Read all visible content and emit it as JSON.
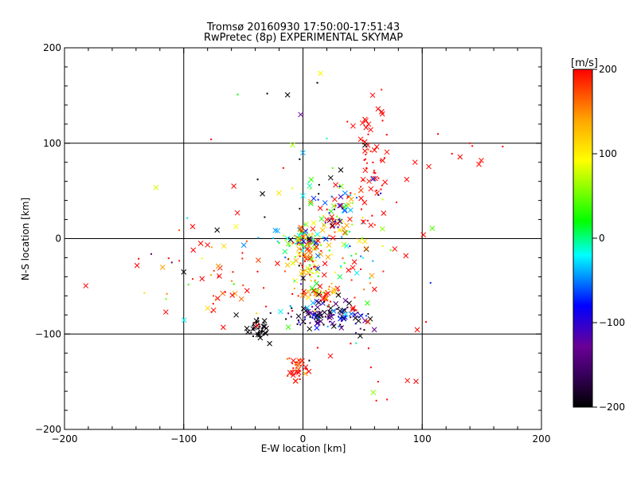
{
  "chart_data": {
    "type": "scatter",
    "title": "Tromsø 20160930 17:50:00-17:51:43",
    "subtitle": "RwPretec (8p) EXPERIMENTAL SKYMAP",
    "xlabel": "E-W location [km]",
    "ylabel": "N-S location [km]",
    "xlim": [
      -200,
      200
    ],
    "ylim": [
      -200,
      200
    ],
    "xticks": [
      "-200",
      "-100",
      "0",
      "100",
      "200"
    ],
    "yticks": [
      "-200",
      "-100",
      "0",
      "100",
      "200"
    ],
    "grid_values": [
      -100,
      0,
      100
    ],
    "grid": true,
    "colorbar": {
      "label": "[m/s]",
      "range": [
        -200,
        200
      ],
      "ticks": [
        "200",
        "100",
        "0",
        "-100",
        "-200"
      ],
      "colors": [
        "#000000",
        "#6a0096",
        "#0000ff",
        "#00ffff",
        "#00ff00",
        "#ffff00",
        "#ffa500",
        "#ff0000"
      ]
    },
    "series": [
      {
        "name": "clusters",
        "clusters": [
          {
            "cx": 2,
            "cy": -1,
            "sx": 8,
            "sy": 6,
            "n": 90,
            "v": 60,
            "vs": 110
          },
          {
            "cx": 3,
            "cy": -25,
            "sx": 7,
            "sy": 12,
            "n": 60,
            "v": 150,
            "vs": 70
          },
          {
            "cx": 18,
            "cy": -58,
            "sx": 10,
            "sy": 6,
            "n": 40,
            "v": 170,
            "vs": 50
          },
          {
            "cx": 18,
            "cy": -82,
            "sx": 18,
            "sy": 7,
            "n": 130,
            "v": -150,
            "vs": 60
          },
          {
            "cx": -38,
            "cy": -96,
            "sx": 4,
            "sy": 6,
            "n": 40,
            "v": -200,
            "vs": 5
          },
          {
            "cx": -5,
            "cy": -137,
            "sx": 4,
            "sy": 7,
            "n": 40,
            "v": 190,
            "vs": 20
          },
          {
            "cx": 30,
            "cy": 15,
            "sx": 10,
            "sy": 12,
            "n": 55,
            "v": 20,
            "vs": 150
          },
          {
            "cx": 55,
            "cy": 75,
            "sx": 10,
            "sy": 30,
            "n": 60,
            "v": 200,
            "vs": 10
          },
          {
            "cx": 25,
            "cy": 45,
            "sx": 15,
            "sy": 15,
            "n": 30,
            "v": 0,
            "vs": 150
          },
          {
            "cx": -60,
            "cy": -40,
            "sx": 20,
            "sy": 15,
            "n": 25,
            "v": 190,
            "vs": 30
          },
          {
            "cx": 45,
            "cy": -20,
            "sx": 15,
            "sy": 20,
            "n": 30,
            "v": 100,
            "vs": 150
          },
          {
            "cx": 0,
            "cy": -50,
            "sx": 60,
            "sy": 45,
            "n": 80,
            "v": 100,
            "vs": 200
          },
          {
            "cx": 120,
            "cy": 85,
            "sx": 25,
            "sy": 12,
            "n": 8,
            "v": 200,
            "vs": 5
          },
          {
            "cx": -90,
            "cy": -25,
            "sx": 30,
            "sy": 25,
            "n": 12,
            "v": 120,
            "vs": 100
          },
          {
            "cx": 15,
            "cy": 90,
            "sx": 30,
            "sy": 40,
            "n": 15,
            "v": 0,
            "vs": 200
          },
          {
            "cx": 90,
            "cy": -150,
            "sx": 4,
            "sy": 4,
            "n": 2,
            "v": 200,
            "vs": 5
          },
          {
            "cx": 65,
            "cy": -170,
            "sx": 3,
            "sy": 3,
            "n": 2,
            "v": 200,
            "vs": 5
          }
        ]
      }
    ],
    "points": [
      {
        "x": -30,
        "y": 152,
        "v": -200,
        "m": "."
      },
      {
        "x": -77,
        "y": 104,
        "v": 200,
        "m": "."
      },
      {
        "x": 63,
        "y": 136,
        "v": 200,
        "m": "x"
      },
      {
        "x": 66,
        "y": 133,
        "v": 200,
        "m": "x"
      },
      {
        "x": 52,
        "y": 125,
        "v": 200,
        "m": "x"
      },
      {
        "x": 55,
        "y": 120,
        "v": 200,
        "m": "x"
      },
      {
        "x": 42,
        "y": 118,
        "v": 200,
        "m": "x"
      },
      {
        "x": 140,
        "y": 100,
        "v": 200,
        "m": "."
      },
      {
        "x": 125,
        "y": 89,
        "v": 200,
        "m": "."
      },
      {
        "x": 101,
        "y": 4,
        "v": 200,
        "m": "x"
      },
      {
        "x": 94,
        "y": 80,
        "v": 200,
        "m": "x"
      },
      {
        "x": 87,
        "y": 62,
        "v": 200,
        "m": "x"
      },
      {
        "x": 0,
        "y": 90,
        "v": -40,
        "m": "x"
      },
      {
        "x": -38,
        "y": 62,
        "v": -200,
        "m": "."
      },
      {
        "x": -34,
        "y": 47,
        "v": -200,
        "m": "x"
      },
      {
        "x": -58,
        "y": 55,
        "v": 200,
        "m": "x"
      },
      {
        "x": -55,
        "y": 27,
        "v": 200,
        "m": "x"
      },
      {
        "x": -72,
        "y": 9,
        "v": -200,
        "m": "x"
      },
      {
        "x": -92,
        "y": -12,
        "v": 200,
        "m": "x"
      },
      {
        "x": -115,
        "y": -77,
        "v": 200,
        "m": "x"
      },
      {
        "x": -133,
        "y": -57,
        "v": 110,
        "m": "."
      },
      {
        "x": -110,
        "y": -25,
        "v": -150,
        "m": "."
      },
      {
        "x": -100,
        "y": -35,
        "v": -200,
        "m": "x"
      },
      {
        "x": -75,
        "y": -75,
        "v": 200,
        "m": "x"
      },
      {
        "x": -80,
        "y": -73,
        "v": 110,
        "m": "x"
      },
      {
        "x": -56,
        "y": -80,
        "v": -200,
        "m": "x"
      },
      {
        "x": -28,
        "y": -110,
        "v": -200,
        "m": "x"
      },
      {
        "x": 23,
        "y": -123,
        "v": 200,
        "m": "x"
      },
      {
        "x": 48,
        "y": -102,
        "v": -200,
        "m": "x"
      },
      {
        "x": 55,
        "y": -115,
        "v": 200,
        "m": "."
      },
      {
        "x": 40,
        "y": -110,
        "v": 200,
        "m": "."
      },
      {
        "x": 57,
        "y": -135,
        "v": 200,
        "m": "."
      },
      {
        "x": 63,
        "y": -150,
        "v": 200,
        "m": "."
      },
      {
        "x": 20,
        "y": 105,
        "v": -10,
        "m": "."
      },
      {
        "x": 0,
        "y": 45,
        "v": -20,
        "m": "x"
      },
      {
        "x": 52,
        "y": 98,
        "v": -200,
        "m": "x"
      }
    ]
  }
}
